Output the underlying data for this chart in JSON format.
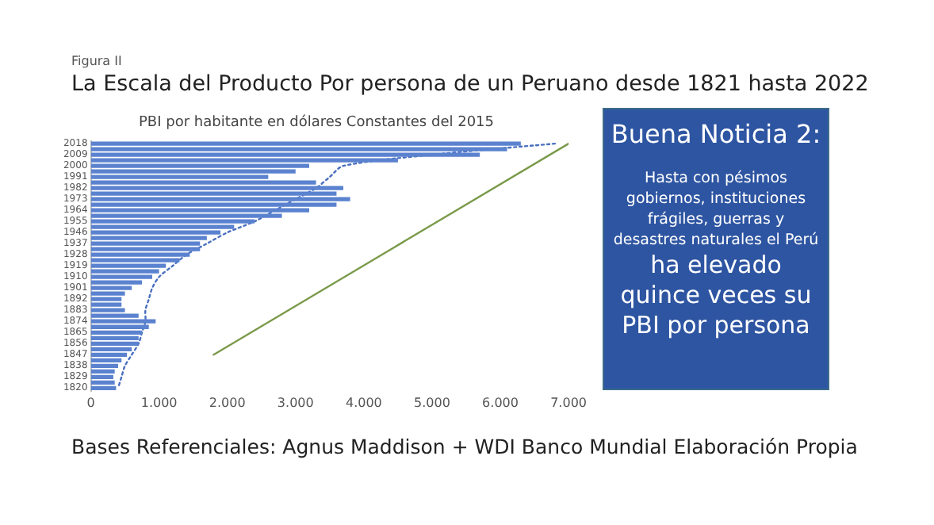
{
  "chart_data": {
    "type": "bar",
    "orientation": "horizontal",
    "title": "La Escala del Producto Por persona de un Peruano desde 1821 hasta 2022",
    "subtitle": "PBI por habitante en dólares Constantes del 2015",
    "categories": [
      "2018",
      null,
      "2009",
      null,
      "2000",
      null,
      "1991",
      null,
      "1982",
      null,
      "1973",
      null,
      "1964",
      null,
      "1955",
      null,
      "1946",
      null,
      "1937",
      null,
      "1928",
      null,
      "1919",
      null,
      "1910",
      null,
      "1901",
      null,
      "1892",
      null,
      "1883",
      null,
      "1874",
      null,
      "1865",
      null,
      "1856",
      null,
      "1847",
      null,
      "1838",
      null,
      "1829",
      null,
      "1820"
    ],
    "series": [
      {
        "color": "#5b82cf",
        "values": [
          6300,
          6100,
          5700,
          4500,
          3200,
          3000,
          2600,
          3300,
          3700,
          3600,
          3800,
          3600,
          3200,
          2800,
          2400,
          2100,
          1900,
          1700,
          1600,
          1600,
          1450,
          1300,
          1100,
          1000,
          900,
          750,
          600,
          500,
          450,
          450,
          500,
          700,
          950,
          850,
          750,
          700,
          700,
          600,
          530,
          450,
          400,
          350,
          330,
          350,
          370
        ]
      },
      {
        "type": "line",
        "color": "#4a6fbf",
        "line_style": "dotted",
        "marker": "none",
        "values": [
          6800,
          null,
          5000,
          null,
          3700,
          null,
          3500,
          null,
          3300,
          null,
          3000,
          null,
          2700,
          null,
          2400,
          null,
          2000,
          null,
          1700,
          null,
          1400,
          null,
          1200,
          null,
          1000,
          null,
          900,
          null,
          850,
          null,
          800,
          null,
          800,
          null,
          750,
          null,
          700,
          null,
          600,
          null,
          500,
          null,
          450,
          null,
          400
        ]
      },
      {
        "type": "line",
        "color": "#7a9a4a",
        "line_style": "solid",
        "marker": "none",
        "values": [
          7000,
          null,
          null,
          null,
          null,
          null,
          null,
          null,
          null,
          null,
          null,
          null,
          null,
          null,
          null,
          null,
          null,
          null,
          null,
          null,
          null,
          null,
          null,
          null,
          null,
          null,
          null,
          null,
          null,
          null,
          null,
          null,
          null,
          null,
          null,
          null,
          null,
          null,
          1800,
          null,
          null,
          null,
          null,
          null,
          null
        ]
      }
    ],
    "xlim": [
      0,
      7000
    ],
    "xticks": [
      0,
      {
        "value": 1000,
        "label": "1.000"
      },
      {
        "value": 2000,
        "label": "2.000"
      },
      {
        "value": 3000,
        "label": "3.000"
      },
      {
        "value": 4000,
        "label": "4.000"
      },
      {
        "value": 5000,
        "label": "5.000"
      },
      {
        "value": 6000,
        "label": "6.000"
      },
      {
        "value": 7000,
        "label": "7.000"
      }
    ],
    "grid": false,
    "legend": false,
    "annotations": [
      "Figura II",
      "Buena Noticia 2:",
      "Hasta con pésimos gobiernos, instituciones frágiles, guerras y desastres naturales el Perú",
      "ha elevado quince veces su PBI por persona",
      "Bases Referenciales: Agnus Maddison + WDI Banco Mundial Elaboración Propia"
    ]
  }
}
